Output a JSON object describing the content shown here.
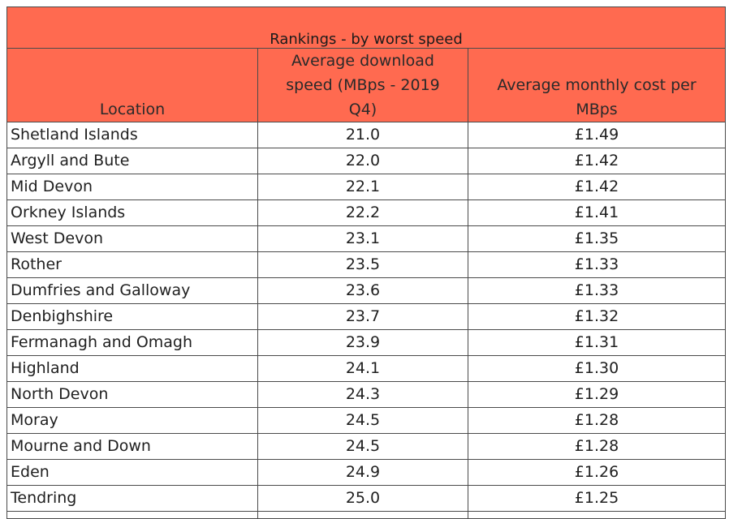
{
  "table": {
    "title": "Rankings - by worst speed",
    "headers": {
      "location": "Location",
      "speed": "Average download speed (MBps - 2019 Q4)",
      "cost": "Average monthly cost per MBps"
    },
    "rows": [
      {
        "location": "Shetland Islands",
        "speed": "21.0",
        "cost": "£1.49"
      },
      {
        "location": "Argyll and Bute",
        "speed": "22.0",
        "cost": "£1.42"
      },
      {
        "location": "Mid Devon",
        "speed": "22.1",
        "cost": "£1.42"
      },
      {
        "location": "Orkney Islands",
        "speed": "22.2",
        "cost": "£1.41"
      },
      {
        "location": "West Devon",
        "speed": "23.1",
        "cost": "£1.35"
      },
      {
        "location": "Rother",
        "speed": "23.5",
        "cost": "£1.33"
      },
      {
        "location": "Dumfries and Galloway",
        "speed": "23.6",
        "cost": "£1.33"
      },
      {
        "location": "Denbighshire",
        "speed": "23.7",
        "cost": "£1.32"
      },
      {
        "location": "Fermanagh and Omagh",
        "speed": "23.9",
        "cost": "£1.31"
      },
      {
        "location": "Highland",
        "speed": "24.1",
        "cost": "£1.30"
      },
      {
        "location": "North Devon",
        "speed": "24.3",
        "cost": "£1.29"
      },
      {
        "location": "Moray",
        "speed": "24.5",
        "cost": "£1.28"
      },
      {
        "location": "Mourne and Down",
        "speed": "24.5",
        "cost": "£1.28"
      },
      {
        "location": "Eden",
        "speed": "24.9",
        "cost": "£1.26"
      },
      {
        "location": "Tendring",
        "speed": "25.0",
        "cost": "£1.25"
      }
    ]
  },
  "colors": {
    "header_background": "#ff6a50",
    "border": "#4a4a4a"
  }
}
